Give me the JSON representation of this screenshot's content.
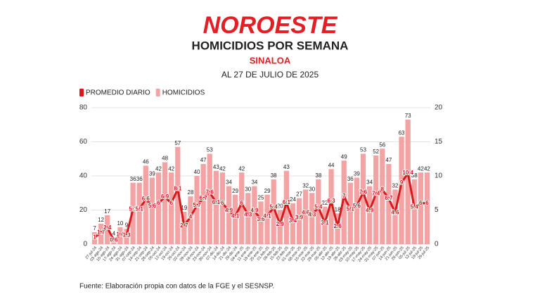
{
  "chart_data": {
    "type": "bar",
    "brand": "NOROESTE",
    "title": "HOMICIDIOS POR SEMANA",
    "subtitle": "SINALOA",
    "date_note": "AL 27 DE JULIO DE 2025",
    "source": "Fuente: Elaboración propia con datos de la FGE y el SESNSP.",
    "categories": [
      "27-jul-24",
      "03-ago-24",
      "10-ago-24",
      "17-ago-24",
      "24-ago-24",
      "31-ago-24",
      "07-sep-24",
      "14-sep-24",
      "21-sep-24",
      "28-sep-24",
      "05-oct-24",
      "12-oct-24",
      "19-oct-24",
      "26-oct-24",
      "02-nov-24",
      "09-nov-24",
      "16-nov-24",
      "23-nov-24",
      "30-nov-24",
      "07-dic-24",
      "14-dic-24",
      "21-dic-24",
      "28-dic-24",
      "04-ene-25",
      "11-ene-25",
      "18-ene-25",
      "25-ene-25",
      "01-feb-25",
      "08-feb-25",
      "15-feb-25",
      "22-feb-25",
      "01-mar-25",
      "08-mar-25",
      "15-mar-25",
      "22-mar-25",
      "29-mar-25",
      "05-abr-25",
      "12-abr-25",
      "19-abr-25",
      "26-abr-25",
      "03-may-25",
      "10-may-25",
      "17-may-25",
      "24-may-25",
      "31-may-25",
      "07-jun-25",
      "14-jun-25",
      "21-jun-25",
      "28-jun-25",
      "05-jul-25",
      "12-jul-25",
      "19-jul-25",
      "26-jul-25"
    ],
    "series": [
      {
        "name": "PROMEDIO DIARIO",
        "color": "#d7191c",
        "type": "line",
        "axis": "y2",
        "values": [
          1,
          1.7,
          2.4,
          0.6,
          1.4,
          1.3,
          5.1,
          5.1,
          6.6,
          5.6,
          6,
          6.9,
          6,
          8.1,
          2.7,
          4,
          5.7,
          6.7,
          7.6,
          6.1,
          6,
          4.9,
          4.1,
          6,
          4.3,
          4.9,
          3.6,
          4.1,
          5.4,
          2.9,
          6.1,
          3.4,
          3.9,
          4.6,
          4.3,
          5.4,
          3.1,
          6.3,
          2.6,
          7,
          5.1,
          5.6,
          7.6,
          4.9,
          7.4,
          8,
          6.7,
          4.6,
          9,
          10.4,
          5.4,
          6,
          6
        ]
      },
      {
        "name": "HOMICIDIOS",
        "color": "#f4a3a5",
        "type": "bar",
        "values": [
          7,
          12,
          17,
          4,
          10,
          9,
          36,
          36,
          46,
          39,
          42,
          48,
          42,
          57,
          19,
          28,
          40,
          47,
          53,
          43,
          42,
          34,
          29,
          42,
          30,
          34,
          25,
          29,
          38,
          20,
          43,
          24,
          27,
          32,
          30,
          38,
          22,
          44,
          18,
          49,
          36,
          39,
          53,
          34,
          52,
          56,
          47,
          32,
          63,
          73,
          38,
          42,
          42
        ]
      }
    ],
    "ylim": [
      0,
      80
    ],
    "yticks": [
      0,
      20,
      40,
      60,
      80
    ],
    "y2lim": [
      0,
      20
    ],
    "y2ticks": [
      0,
      5,
      10,
      15,
      20
    ],
    "grid": true
  }
}
